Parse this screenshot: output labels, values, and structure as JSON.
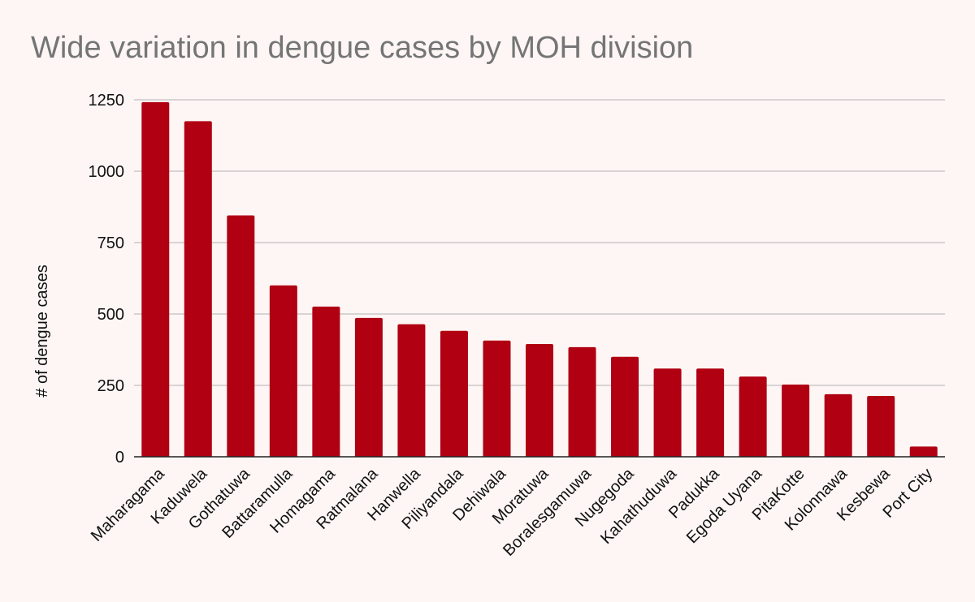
{
  "chart_data": {
    "type": "bar",
    "title": "Wide variation in dengue cases by MOH division",
    "xlabel": "",
    "ylabel": "# of dengue cases",
    "categories": [
      "Maharagama",
      "Kaduwela",
      "Gothatuwa",
      "Battaramulla",
      "Homagama",
      "Ratmalana",
      "Hanwella",
      "Piliyandala",
      "Dehiwala",
      "Moratuwa",
      "Boralesgamuwa",
      "Nugegoda",
      "Kahathuduwa",
      "Padukka",
      "Egoda Uyana",
      "PitaKotte",
      "Kolonnawa",
      "Kesbewa",
      "Port City"
    ],
    "values": [
      1242,
      1175,
      845,
      600,
      526,
      486,
      464,
      441,
      407,
      395,
      384,
      350,
      309,
      309,
      281,
      253,
      219,
      213,
      36
    ],
    "ylim": [
      0,
      1250
    ],
    "yticks": [
      "0",
      "250",
      "500",
      "750",
      "1000",
      "1250"
    ],
    "grid": true,
    "legend": "none",
    "colors": {
      "bar": "#b00012",
      "grid": "#c4c0c0",
      "axis": "#222222",
      "background": "#fdf6f5",
      "title": "#757575"
    }
  }
}
